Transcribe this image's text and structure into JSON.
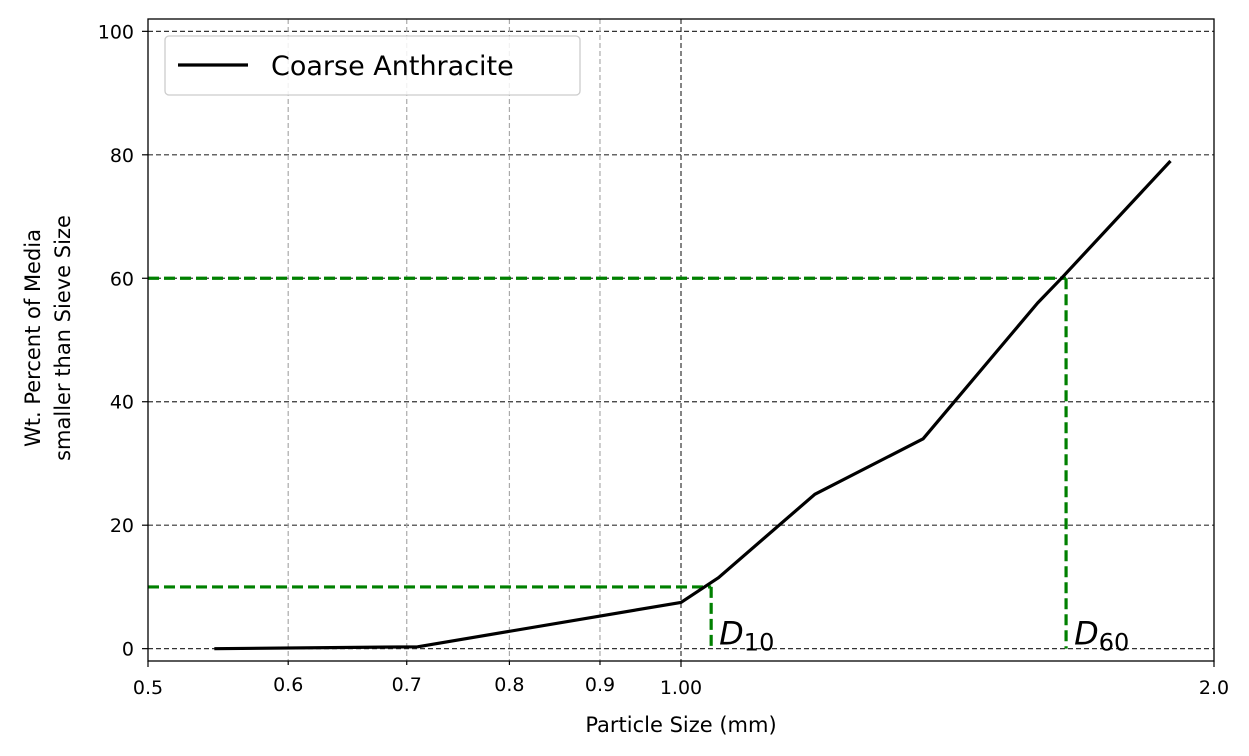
{
  "chart_data": {
    "type": "line",
    "xlabel": "Particle Size (mm)",
    "ylabel_lines": [
      "Wt. Percent of Media",
      "smaller than Sieve Size"
    ],
    "x_scale": "log",
    "xlim": [
      0.5,
      2.0
    ],
    "ylim": [
      -2,
      102
    ],
    "x_ticks": [
      {
        "value": 0.5,
        "label": "0.5"
      },
      {
        "value": 0.6,
        "label": "0.6"
      },
      {
        "value": 0.7,
        "label": "0.7"
      },
      {
        "value": 0.8,
        "label": "0.8"
      },
      {
        "value": 0.9,
        "label": "0.9"
      },
      {
        "value": 1.0,
        "label": "1.00"
      },
      {
        "value": 2.0,
        "label": "2.0"
      }
    ],
    "x_minor_grid": [
      0.6,
      0.7,
      0.8,
      0.9
    ],
    "x_major_grid": [
      1.0
    ],
    "y_ticks": [
      0,
      20,
      40,
      60,
      80,
      100
    ],
    "legend": {
      "placement": "top-left"
    },
    "series": [
      {
        "name": "Coarse Anthracite",
        "color": "#000000",
        "points": [
          [
            0.545,
            0.0
          ],
          [
            0.71,
            0.3
          ],
          [
            1.0,
            7.5
          ],
          [
            1.05,
            11.5
          ],
          [
            1.19,
            25.0
          ],
          [
            1.37,
            34.0
          ],
          [
            1.59,
            56.0
          ],
          [
            1.64,
            60.0
          ],
          [
            1.89,
            79.0
          ]
        ]
      }
    ],
    "reference_lines": {
      "color": "#008000",
      "items": [
        {
          "x": 1.04,
          "y": 10,
          "label_base": "D",
          "label_sub": "10"
        },
        {
          "x": 1.65,
          "y": 60,
          "label_base": "D",
          "label_sub": "60"
        }
      ]
    }
  }
}
